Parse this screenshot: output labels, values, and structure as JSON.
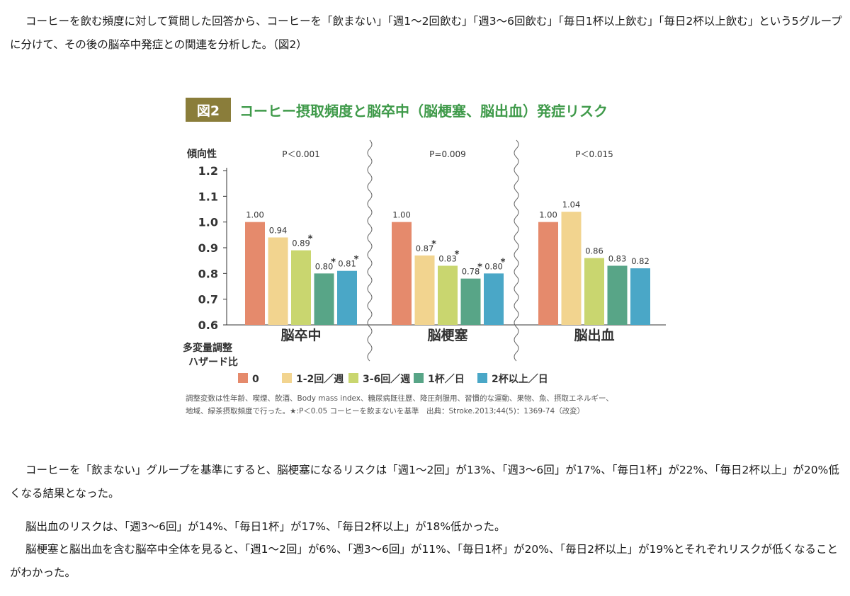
{
  "paragraphs": {
    "top": "コーヒーを飲む頻度に対して質問した回答から、コーヒーを「飲まない」「週1〜2回飲む」「週3〜6回飲む」「毎日1杯以上飲む」「毎日2杯以上飲む」という5グループに分けて、その後の脳卒中発症との関連を分析した。（図2）",
    "bottom1": "コーヒーを「飲まない」グループを基準にすると、脳梗塞になるリスクは「週1〜2回」が13%、「週3〜6回」が17%、「毎日1杯」が22%、「毎日2杯以上」が20%低くなる結果となった。",
    "bottom2": "脳出血のリスクは、「週3〜6回」が14%、「毎日1杯」が17%、「毎日2杯以上」が18%低かった。",
    "bottom3": "脳梗塞と脳出血を含む脳卒中全体を見ると、「週1〜2回」が6%、「週3〜6回」が11%、「毎日1杯」が20%、「毎日2杯以上」が19%とそれぞれリスクが低くなることがわかった。"
  },
  "chart_data": {
    "type": "bar",
    "figure_label": "図2",
    "title": "コーヒー摂取頻度と脳卒中（脳梗塞、脳出血）発症リスク",
    "trend_label": "傾向性",
    "ylabel_line1": "多変量調整",
    "ylabel_line2": "ハザード比",
    "ylim": [
      0.6,
      1.2
    ],
    "yticks": [
      "1.2",
      "1.1",
      "1.0",
      "0.9",
      "0.8",
      "0.7",
      "0.6"
    ],
    "groups": [
      {
        "name": "脳卒中",
        "pvalue": "P＜0.001",
        "values": [
          1.0,
          0.94,
          0.89,
          0.8,
          0.81
        ],
        "labels": [
          "1.00",
          "0.94",
          "0.89",
          "0.80",
          "0.81"
        ],
        "significant": [
          false,
          false,
          true,
          true,
          true
        ]
      },
      {
        "name": "脳梗塞",
        "pvalue": "P=0.009",
        "values": [
          1.0,
          0.87,
          0.83,
          0.78,
          0.8
        ],
        "labels": [
          "1.00",
          "0.87",
          "0.83",
          "0.78",
          "0.80"
        ],
        "significant": [
          false,
          true,
          true,
          true,
          true
        ]
      },
      {
        "name": "脳出血",
        "pvalue": "P＜0.015",
        "values": [
          1.0,
          1.04,
          0.86,
          0.83,
          0.82
        ],
        "labels": [
          "1.00",
          "1.04",
          "0.86",
          "0.83",
          "0.82"
        ],
        "significant": [
          false,
          false,
          false,
          false,
          false
        ]
      }
    ],
    "series": [
      {
        "name": "0",
        "color": "#e58a6c"
      },
      {
        "name": "1-2回／週",
        "color": "#f2d48f"
      },
      {
        "name": "3-6回／週",
        "color": "#c9d66f"
      },
      {
        "name": "1杯／日",
        "color": "#58a587"
      },
      {
        "name": "2杯以上／日",
        "color": "#4aa7c7"
      }
    ],
    "star": "*",
    "note_line1": "調整変数は性年齢、喫煙、飲酒、Body mass index、糖尿病既往歴、降圧剤服用、習慣的な運動、果物、魚、摂取エネルギー、",
    "note_line2": "地域、緑茶摂取頻度で行った。★:P＜0.05 コーヒーを飲まないを基準　出典：Stroke.2013;44(5)：1369-74（改変）",
    "colors": {
      "title": "#3f9a4a",
      "label_bg": "#8a7d3a",
      "axis": "#333333"
    }
  }
}
